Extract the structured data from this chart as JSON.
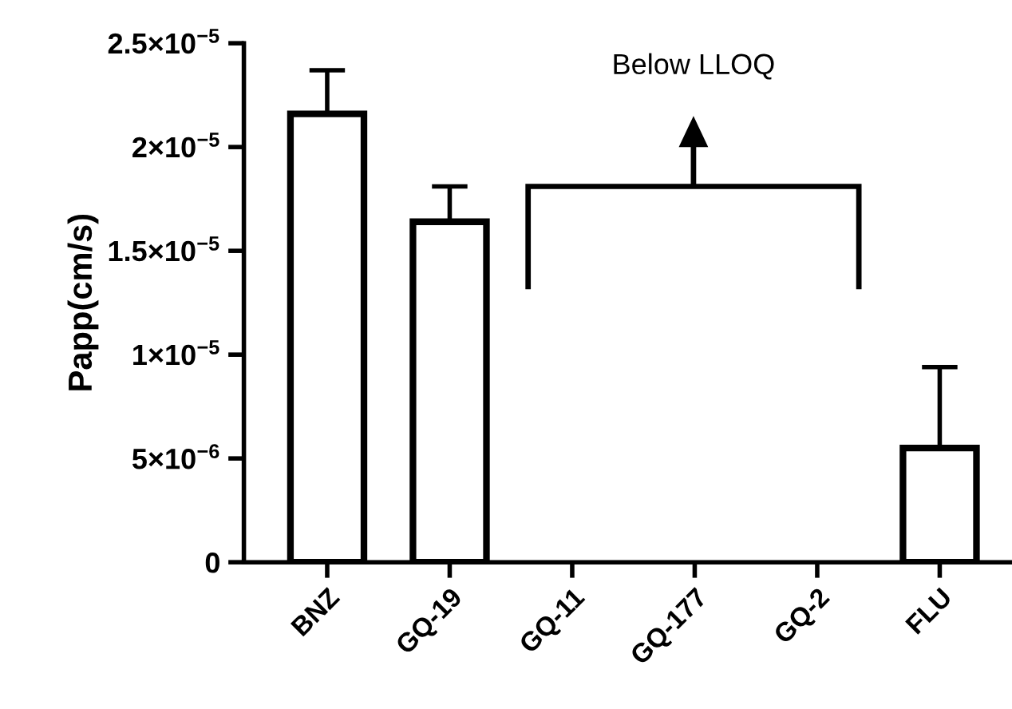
{
  "chart_data": {
    "type": "bar",
    "ylabel": "Papp(cm/s)",
    "categories": [
      "BNZ",
      "GQ-19",
      "GQ-11",
      "GQ-177",
      "GQ-2",
      "FLU"
    ],
    "values": [
      2.16e-05,
      1.64e-05,
      null,
      null,
      null,
      5.5e-06
    ],
    "errors": [
      [
        2.16e-05,
        2.37e-05
      ],
      [
        1.64e-05,
        1.81e-05
      ],
      null,
      null,
      null,
      [
        5.5e-06,
        9.4e-06
      ]
    ],
    "color": "#ffffff",
    "ylim": [
      0,
      2.5e-05
    ],
    "yticks": [
      0,
      {
        "value": 5e-06,
        "label": "5×10$^{−6}$"
      },
      {
        "value": 1e-05,
        "label": "1×10$^{−5}$"
      },
      {
        "value": 1.5e-05,
        "label": "1.5×10$^{−5}$"
      },
      {
        "value": 2e-05,
        "label": "2×10$^{−5}$"
      },
      {
        "value": 2.5e-05,
        "label": "2.5×10$^{−5}$"
      }
    ],
    "grid": false,
    "annotations": [
      "Below LLOQ"
    ]
  }
}
